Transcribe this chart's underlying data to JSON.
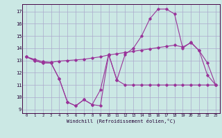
{
  "background_color": "#cbe8e4",
  "grid_color": "#aaaacc",
  "line_color": "#993399",
  "xlabel": "Windchill (Refroidissement éolien,°C)",
  "x_hours": [
    0,
    1,
    2,
    3,
    4,
    5,
    6,
    7,
    8,
    9,
    10,
    11,
    12,
    13,
    14,
    15,
    16,
    17,
    18,
    19,
    20,
    21,
    22,
    23
  ],
  "series_wc": [
    13.3,
    13.0,
    12.8,
    12.8,
    11.5,
    9.6,
    9.3,
    9.8,
    9.4,
    9.3,
    13.5,
    11.4,
    11.0,
    11.0,
    11.0,
    11.0,
    11.0,
    11.0,
    11.0,
    11.0,
    11.0,
    11.0,
    11.0,
    11.0
  ],
  "series_temp": [
    13.3,
    13.0,
    12.8,
    12.8,
    11.5,
    9.6,
    9.3,
    9.8,
    9.4,
    10.6,
    13.5,
    11.4,
    13.5,
    14.0,
    15.0,
    16.4,
    17.2,
    17.2,
    16.8,
    14.0,
    14.5,
    13.8,
    11.8,
    11.0
  ],
  "series_avg": [
    13.3,
    13.1,
    12.9,
    12.85,
    12.95,
    13.0,
    13.05,
    13.1,
    13.2,
    13.3,
    13.45,
    13.55,
    13.65,
    13.75,
    13.85,
    13.95,
    14.05,
    14.15,
    14.25,
    14.1,
    14.45,
    13.8,
    12.8,
    11.0
  ],
  "ylim_min": 8.7,
  "ylim_max": 17.6,
  "yticks": [
    9,
    10,
    11,
    12,
    13,
    14,
    15,
    16,
    17
  ],
  "xticks": [
    0,
    1,
    2,
    3,
    4,
    5,
    6,
    7,
    8,
    9,
    10,
    11,
    12,
    13,
    14,
    15,
    16,
    17,
    18,
    19,
    20,
    21,
    22,
    23
  ]
}
